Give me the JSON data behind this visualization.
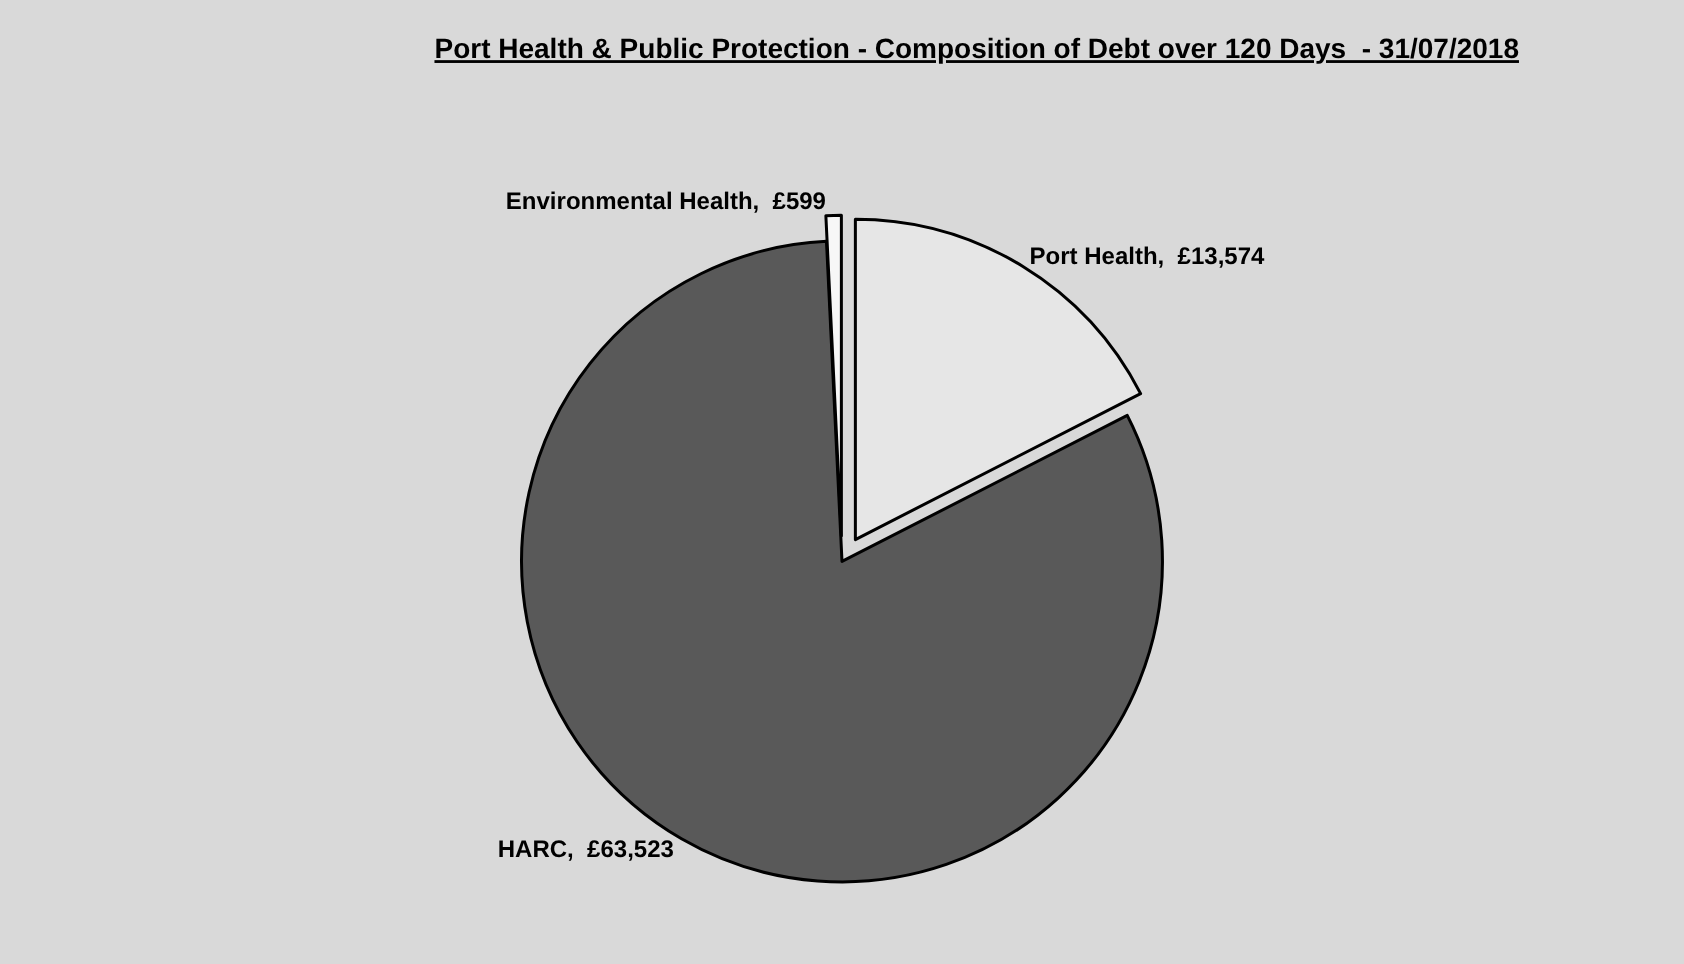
{
  "chart_data": {
    "type": "pie",
    "title": "Port Health & Public Protection - Composition of Debt over 120 Days  - 31/07/2018",
    "categories": [
      "Port Health",
      "HARC",
      "Environmental Health"
    ],
    "values": [
      13574,
      63523,
      599
    ],
    "value_labels": [
      "£13,574",
      "£63,523",
      "£599"
    ],
    "colors": [
      "#e6e6e6",
      "#595959",
      "#f7f7f7"
    ],
    "legend": false
  }
}
